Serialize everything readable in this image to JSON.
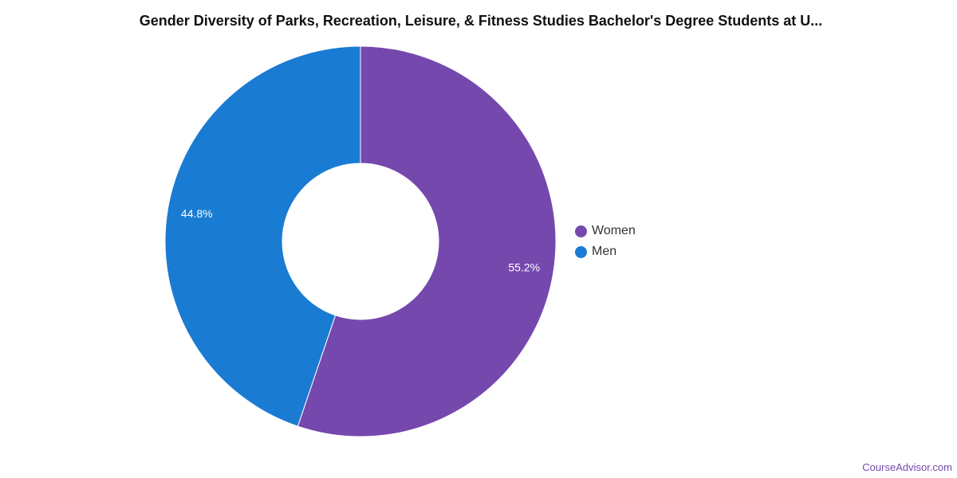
{
  "chart_data": {
    "type": "pie",
    "variant": "donut",
    "title": "Gender Diversity of Parks, Recreation, Leisure, & Fitness Studies Bachelor's Degree Students at U...",
    "categories": [
      "Women",
      "Men"
    ],
    "values": [
      55.2,
      44.8
    ],
    "value_labels": [
      "55.2%",
      "44.8%"
    ],
    "colors": [
      "#7548ae",
      "#1a7bd2"
    ],
    "legend_position": "right",
    "start_angle": "top",
    "direction": "clockwise"
  },
  "credit": "CourseAdvisor.com"
}
